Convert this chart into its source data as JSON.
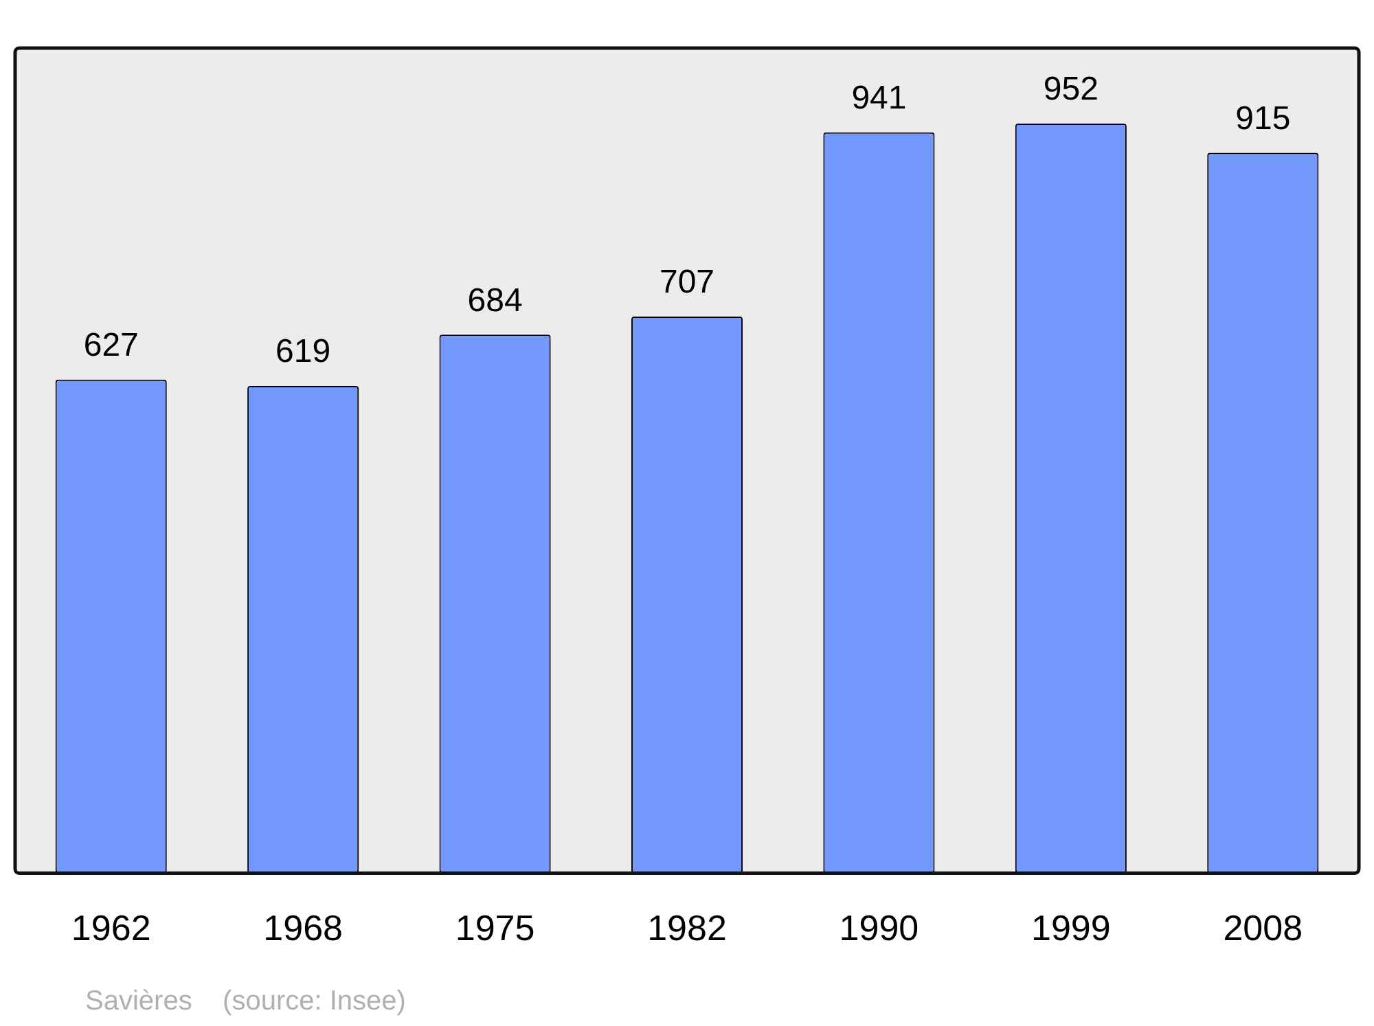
{
  "chart_data": {
    "type": "bar",
    "categories": [
      "1962",
      "1968",
      "1975",
      "1982",
      "1990",
      "1999",
      "2008"
    ],
    "values": [
      627,
      619,
      684,
      707,
      941,
      952,
      915
    ],
    "color": "#7399ff",
    "ylim": [
      0,
      1048
    ],
    "data_labels": true,
    "grid": false,
    "legend": false,
    "tick_labels": "x",
    "annotations": [
      "Savières    (source: Insee)"
    ]
  }
}
